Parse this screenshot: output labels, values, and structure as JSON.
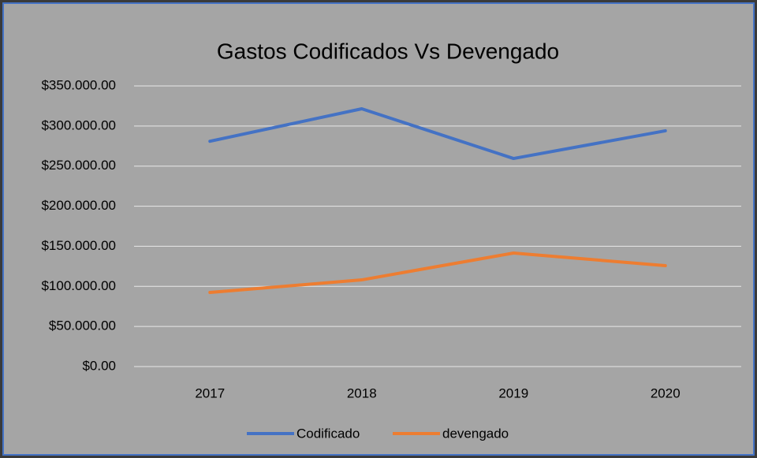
{
  "chart_data": {
    "type": "line",
    "title": "Gastos Codificados Vs Devengado",
    "categories": [
      "2017",
      "2018",
      "2019",
      "2020"
    ],
    "series": [
      {
        "name": "Codificado",
        "color": "#4472c4",
        "values": [
          281000,
          321500,
          259500,
          294000
        ]
      },
      {
        "name": "devengado",
        "color": "#ed7d31",
        "values": [
          92400,
          108100,
          141600,
          125800
        ]
      }
    ],
    "ylim": [
      0,
      350000
    ],
    "yticks": [
      {
        "value": 0,
        "label": "$0.00"
      },
      {
        "value": 50000,
        "label": "$50.000.00"
      },
      {
        "value": 100000,
        "label": "$100.000.00"
      },
      {
        "value": 150000,
        "label": "$150.000.00"
      },
      {
        "value": 200000,
        "label": "$200.000.00"
      },
      {
        "value": 250000,
        "label": "$250.000.00"
      },
      {
        "value": 300000,
        "label": "$300.000.00"
      },
      {
        "value": 350000,
        "label": "$350.000.00"
      }
    ],
    "grid": true,
    "legend": "bottom"
  }
}
